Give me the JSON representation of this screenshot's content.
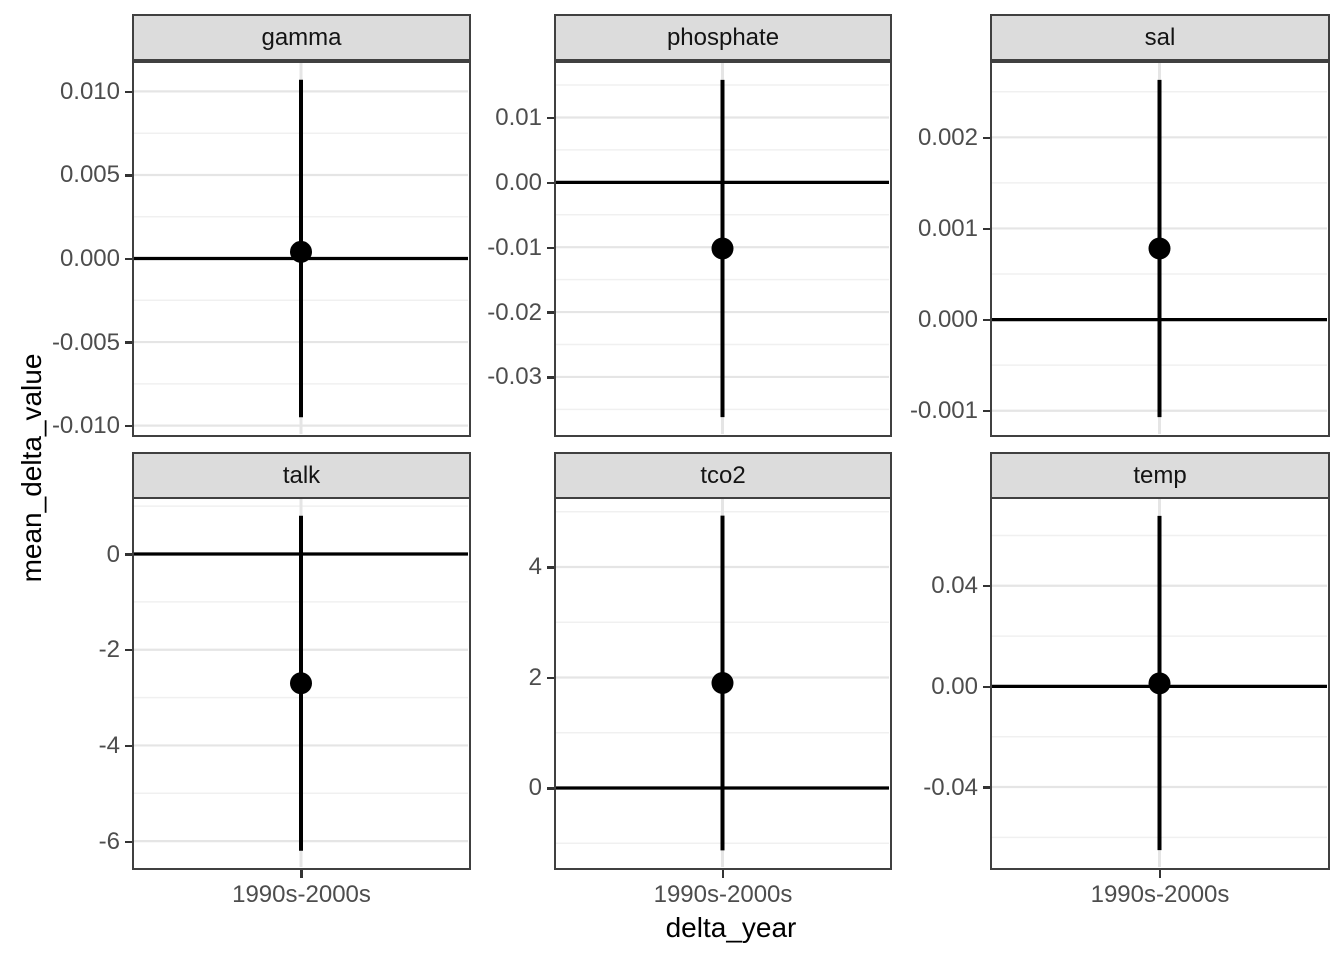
{
  "figure": {
    "background": "#ffffff",
    "strip_fill": "#dcdcdc",
    "border_color": "#404040",
    "grid_major_color": "#e5e5e5",
    "grid_minor_color": "#f0f0f0",
    "tick_label_color": "#4d4d4d",
    "data_color": "#000000"
  },
  "chart_data": {
    "type": "scatter",
    "title": "",
    "xlabel": "delta_year",
    "ylabel": "mean_delta_value",
    "x_category": "1990s-2000s",
    "legend": "none",
    "grid": "on",
    "facet_layout": "2 rows x 3 cols, free y scales",
    "facets": [
      {
        "label": "gamma",
        "ylim": [
          -0.0105,
          0.0117
        ],
        "yticks": {
          "values": [
            0.01,
            0.005,
            0.0,
            -0.005,
            -0.01
          ],
          "labels": [
            "0.010",
            "0.005",
            "0.000",
            "-0.005",
            "-0.010"
          ]
        },
        "yminor": [
          0.0075,
          0.0025,
          -0.0025,
          -0.0075
        ],
        "point": 0.0004,
        "ci": [
          -0.0095,
          0.0107
        ],
        "hline": 0
      },
      {
        "label": "phosphate",
        "ylim": [
          -0.0388,
          0.0184
        ],
        "yticks": {
          "values": [
            0.01,
            0.0,
            -0.01,
            -0.02,
            -0.03
          ],
          "labels": [
            "0.01",
            "0.00",
            "-0.01",
            "-0.02",
            "-0.03"
          ]
        },
        "yminor": [
          0.015,
          0.005,
          -0.005,
          -0.015,
          -0.025,
          -0.035
        ],
        "point": -0.0102,
        "ci": [
          -0.0362,
          0.0158
        ],
        "hline": 0
      },
      {
        "label": "sal",
        "ylim": [
          -0.001255,
          0.002815
        ],
        "yticks": {
          "values": [
            0.002,
            0.001,
            0.0,
            -0.001
          ],
          "labels": [
            "0.002",
            "0.001",
            "0.000",
            "-0.001"
          ]
        },
        "yminor": [
          0.0025,
          0.0015,
          0.0005,
          -0.0005
        ],
        "point": 0.00078,
        "ci": [
          -0.00107,
          0.00263
        ],
        "hline": 0
      },
      {
        "label": "talk",
        "ylim": [
          -6.54,
          1.15
        ],
        "yticks": {
          "values": [
            0,
            -2,
            -4,
            -6
          ],
          "labels": [
            "0",
            "-2",
            "-4",
            "-6"
          ]
        },
        "yminor": [
          1,
          -1,
          -3,
          -5
        ],
        "point": -2.7,
        "ci": [
          -6.2,
          0.8
        ],
        "hline": 0
      },
      {
        "label": "tco2",
        "ylim": [
          -1.43,
          5.23
        ],
        "yticks": {
          "values": [
            4,
            2,
            0
          ],
          "labels": [
            "4",
            "2",
            "0"
          ]
        },
        "yminor": [
          5,
          3,
          1,
          -1
        ],
        "point": 1.9,
        "ci": [
          -1.13,
          4.93
        ],
        "hline": 0
      },
      {
        "label": "temp",
        "ylim": [
          -0.0718,
          0.0745
        ],
        "yticks": {
          "values": [
            0.04,
            0.0,
            -0.04
          ],
          "labels": [
            "0.04",
            "0.00",
            "-0.04"
          ]
        },
        "yminor": [
          0.06,
          0.02,
          -0.02,
          -0.06
        ],
        "point": 0.0012,
        "ci": [
          -0.0651,
          0.0678
        ],
        "hline": 0
      }
    ]
  }
}
